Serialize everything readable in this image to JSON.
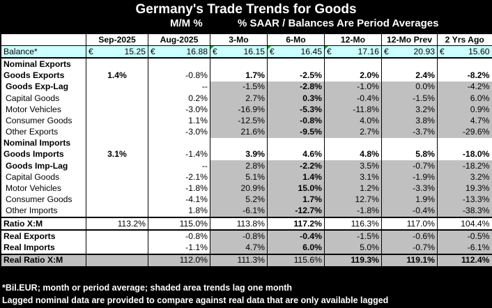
{
  "title": "Germany's Trade Trends for Goods",
  "subtitle_left": "M/M %",
  "subtitle_right": "% SAAR / Balances Are Period Averages",
  "columns": [
    "Sep-2025",
    "Aug-2025",
    "3-Mo",
    "6-Mo",
    "12-Mo",
    "12-Mo Prev",
    "2 Yrs Ago"
  ],
  "currency": "€",
  "balance": {
    "label": "Balance*",
    "values": [
      "15.25",
      "16.88",
      "16.15",
      "16.45",
      "17.16",
      "20.93",
      "15.60"
    ]
  },
  "rows": [
    {
      "label": "Nominal Exports",
      "values": [
        "",
        "",
        "",
        "",
        "",
        "",
        ""
      ]
    },
    {
      "label": "Goods Exports",
      "values": [
        "1.4%",
        "-0.8%",
        "1.7%",
        "-2.5%",
        "2.0%",
        "2.4%",
        "-8.2%"
      ]
    },
    {
      "label": "Goods Exp-Lag",
      "values": [
        "",
        "--",
        "-1.5%",
        "-2.8%",
        "-1.0%",
        "0.0%",
        "-4.2%"
      ]
    },
    {
      "label": "Capital Goods",
      "values": [
        "",
        "0.2%",
        "2.7%",
        "0.3%",
        "-0.4%",
        "-1.5%",
        "6.0%"
      ]
    },
    {
      "label": "Motor Vehicles",
      "values": [
        "",
        "-3.0%",
        "-16.9%",
        "-5.3%",
        "-11.8%",
        "3.2%",
        "0.9%"
      ]
    },
    {
      "label": "Consumer Goods",
      "values": [
        "",
        "1.1%",
        "-12.5%",
        "-0.8%",
        "4.0%",
        "3.8%",
        "4.7%"
      ]
    },
    {
      "label": "Other Exports",
      "values": [
        "",
        "-3.0%",
        "21.6%",
        "-9.5%",
        "2.7%",
        "-3.7%",
        "-29.6%"
      ]
    },
    {
      "label": "Nominal Imports",
      "values": [
        "",
        "",
        "",
        "",
        "",
        "",
        ""
      ]
    },
    {
      "label": "Goods Imports",
      "values": [
        "3.1%",
        "-1.4%",
        "3.9%",
        "4.6%",
        "4.8%",
        "5.8%",
        "-18.0%"
      ]
    },
    {
      "label": "Goods Imp-Lag",
      "values": [
        "",
        "--",
        "2.8%",
        "-2.2%",
        "3.5%",
        "-0.7%",
        "-18.2%"
      ]
    },
    {
      "label": "Capital Goods",
      "values": [
        "",
        "-2.1%",
        "5.1%",
        "1.4%",
        "3.1%",
        "-1.9%",
        "3.2%"
      ]
    },
    {
      "label": "Motor Vehicles",
      "values": [
        "",
        "-1.8%",
        "20.9%",
        "15.0%",
        "1.2%",
        "-3.3%",
        "19.3%"
      ]
    },
    {
      "label": "Consumer Goods",
      "values": [
        "",
        "-4.1%",
        "5.2%",
        "1.7%",
        "12.7%",
        "1.9%",
        "-13.3%"
      ]
    },
    {
      "label": "Other Imports",
      "values": [
        "",
        "1.8%",
        "-6.1%",
        "-12.7%",
        "-1.8%",
        "-0.4%",
        "-38.3%"
      ]
    },
    {
      "label": "Ratio X:M",
      "values": [
        "113.2%",
        "115.0%",
        "113.8%",
        "117.2%",
        "116.3%",
        "117.0%",
        "104.4%"
      ]
    },
    {
      "label": "Real Exports",
      "values": [
        "",
        "-0.8%",
        "-0.8%",
        "-0.4%",
        "-1.5%",
        "-0.6%",
        "-0.5%"
      ]
    },
    {
      "label": "Real Imports",
      "values": [
        "",
        "-1.1%",
        "4.7%",
        "6.0%",
        "5.0%",
        "-0.7%",
        "-6.1%"
      ]
    },
    {
      "label": "Real Ratio X:M",
      "values": [
        "",
        "112.0%",
        "111.3%",
        "115.6%",
        "119.3%",
        "119.1%",
        "112.4%"
      ]
    }
  ],
  "footnote1": "*Bil.EUR; month or period average; shaded area trends lag one month",
  "footnote2": "Lagged nominal data are provided to compare against real data that are only available lagged",
  "colors": {
    "background": "#000000",
    "shade": "#c0c0c0",
    "balance_row": "#ccffff",
    "marker": "#1aa01a"
  }
}
